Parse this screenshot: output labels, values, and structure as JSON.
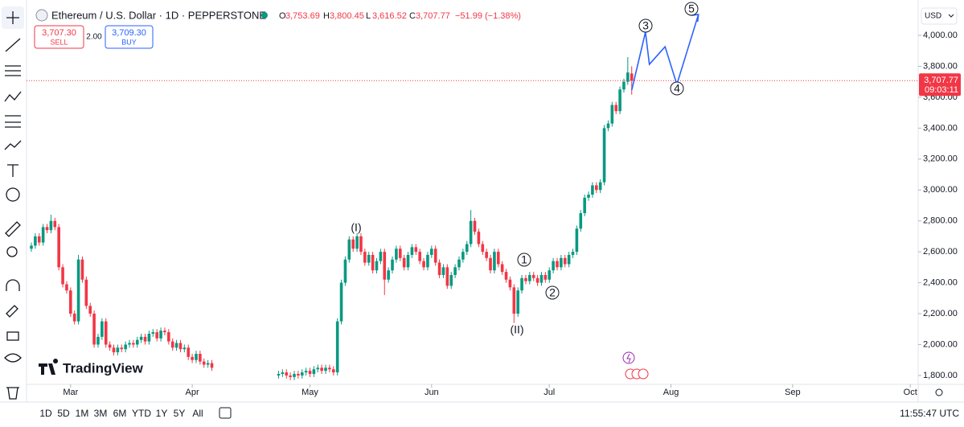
{
  "header": {
    "symbol": "Ethereum / U.S. Dollar · 1D · PEPPERSTONE",
    "ohlc": [
      {
        "label": "O",
        "value": "3,753.69"
      },
      {
        "label": "H",
        "value": "3,800.45"
      },
      {
        "label": "L",
        "value": "3,616.52"
      },
      {
        "label": "C",
        "value": "3,707.77"
      }
    ],
    "change": "−51.99 (−1.38%)",
    "sell": {
      "price": "3,707.30",
      "label": "SELL"
    },
    "spread": "2.00",
    "buy": {
      "price": "3,709.30",
      "label": "BUY"
    }
  },
  "chart_data": {
    "type": "candlestick",
    "x": [
      0,
      1,
      2,
      3,
      4,
      5,
      6,
      7,
      8,
      9,
      10,
      11,
      12,
      13,
      14,
      15,
      16,
      17,
      18,
      19,
      20,
      21,
      22,
      23,
      24,
      25,
      26,
      27,
      28,
      29,
      30,
      31,
      32,
      33,
      34,
      35,
      36,
      37,
      38,
      39,
      40,
      41,
      42,
      43,
      44,
      45,
      46,
      63,
      64,
      65,
      66,
      67,
      68,
      69,
      70,
      71,
      72,
      73,
      74,
      75,
      76,
      77,
      78,
      79,
      80,
      81,
      82,
      83,
      84,
      85,
      86,
      87,
      88,
      89,
      90,
      91,
      92,
      93,
      94,
      95,
      96,
      97,
      98,
      99,
      100,
      101,
      102,
      103,
      104,
      105,
      106,
      107,
      108,
      109,
      110,
      111,
      112,
      113,
      114,
      115,
      116,
      117,
      118,
      119,
      120,
      121,
      122,
      123,
      124,
      125,
      126,
      127,
      128,
      129,
      130,
      131,
      132,
      133,
      134,
      135,
      136,
      137,
      138,
      139,
      140,
      141,
      142,
      143,
      144,
      145,
      146,
      147,
      148,
      149,
      150,
      151,
      152,
      153
    ],
    "open": [
      2620,
      2640,
      2700,
      2660,
      2760,
      2740,
      2800,
      2760,
      2500,
      2390,
      2350,
      2200,
      2150,
      2550,
      2420,
      2250,
      2200,
      2000,
      2050,
      2150,
      2000,
      1980,
      1950,
      1980,
      1970,
      2000,
      2010,
      2000,
      2030,
      2050,
      2020,
      2070,
      2080,
      2040,
      2090,
      2080,
      2020,
      1980,
      2010,
      1970,
      1980,
      1920,
      1900,
      1940,
      1890,
      1870,
      1880,
      1800,
      1810,
      1820,
      1800,
      1790,
      1810,
      1800,
      1820,
      1830,
      1810,
      1840,
      1850,
      1830,
      1850,
      1840,
      1820,
      2150,
      2400,
      2550,
      2680,
      2620,
      2700,
      2600,
      2530,
      2580,
      2480,
      2540,
      2600,
      2420,
      2480,
      2550,
      2620,
      2560,
      2500,
      2580,
      2630,
      2600,
      2540,
      2500,
      2580,
      2620,
      2530,
      2450,
      2500,
      2380,
      2450,
      2500,
      2550,
      2600,
      2650,
      2800,
      2730,
      2650,
      2600,
      2560,
      2480,
      2600,
      2520,
      2470,
      2420,
      2370,
      2200,
      2350,
      2430,
      2410,
      2450,
      2430,
      2400,
      2450,
      2420,
      2480,
      2540,
      2500,
      2560,
      2520,
      2580,
      2600,
      2750,
      2850,
      2950,
      2970,
      3030,
      3000,
      3050,
      3400,
      3430,
      3550,
      3510,
      3650,
      3700,
      3753.69
    ],
    "high": [
      2660,
      2720,
      2720,
      2780,
      2780,
      2840,
      2820,
      2780,
      2520,
      2410,
      2370,
      2220,
      2580,
      2570,
      2440,
      2270,
      2220,
      2070,
      2170,
      2170,
      2020,
      2000,
      2000,
      2000,
      2020,
      2030,
      2030,
      2050,
      2070,
      2070,
      2090,
      2100,
      2100,
      2110,
      2110,
      2100,
      2040,
      2030,
      2030,
      2000,
      2000,
      1940,
      1960,
      1960,
      1910,
      1900,
      1900,
      1830,
      1840,
      1840,
      1820,
      1830,
      1830,
      1840,
      1850,
      1850,
      1860,
      1870,
      1870,
      1870,
      1870,
      1860,
      2170,
      2420,
      2570,
      2700,
      2700,
      2720,
      2720,
      2620,
      2600,
      2600,
      2560,
      2620,
      2620,
      2500,
      2570,
      2640,
      2640,
      2580,
      2600,
      2650,
      2650,
      2620,
      2560,
      2600,
      2640,
      2640,
      2550,
      2520,
      2520,
      2470,
      2520,
      2570,
      2620,
      2670,
      2870,
      2820,
      2750,
      2670,
      2620,
      2580,
      2620,
      2620,
      2540,
      2490,
      2440,
      2390,
      2370,
      2450,
      2450,
      2470,
      2470,
      2450,
      2470,
      2470,
      2500,
      2560,
      2560,
      2580,
      2580,
      2600,
      2620,
      2770,
      2870,
      2970,
      2990,
      3050,
      3050,
      3070,
      3420,
      3450,
      3570,
      3570,
      3670,
      3720,
      3860,
      3800.45
    ],
    "low": [
      2600,
      2620,
      2640,
      2640,
      2720,
      2720,
      2740,
      2480,
      2370,
      2330,
      2180,
      2130,
      2130,
      2400,
      2230,
      2180,
      1980,
      1980,
      2030,
      1980,
      1960,
      1930,
      1930,
      1950,
      1950,
      1980,
      1980,
      1980,
      2010,
      2000,
      2000,
      2050,
      2020,
      2020,
      2060,
      2000,
      1960,
      1960,
      1950,
      1950,
      1900,
      1880,
      1880,
      1870,
      1850,
      1850,
      1830,
      1780,
      1790,
      1780,
      1770,
      1770,
      1780,
      1780,
      1800,
      1790,
      1790,
      1820,
      1810,
      1810,
      1820,
      1800,
      1800,
      2130,
      2380,
      2530,
      2600,
      2600,
      2580,
      2510,
      2510,
      2460,
      2460,
      2520,
      2320,
      2400,
      2460,
      2530,
      2540,
      2480,
      2480,
      2560,
      2580,
      2520,
      2480,
      2480,
      2560,
      2510,
      2430,
      2430,
      2360,
      2360,
      2430,
      2480,
      2530,
      2580,
      2630,
      2710,
      2630,
      2580,
      2540,
      2460,
      2460,
      2500,
      2450,
      2400,
      2350,
      2140,
      2180,
      2330,
      2390,
      2390,
      2410,
      2380,
      2380,
      2400,
      2400,
      2460,
      2480,
      2480,
      2500,
      2500,
      2560,
      2580,
      2730,
      2830,
      2930,
      2950,
      2980,
      2980,
      3030,
      3380,
      3410,
      3490,
      3490,
      3630,
      3680,
      3616.52
    ],
    "close": [
      2640,
      2700,
      2660,
      2760,
      2740,
      2800,
      2760,
      2500,
      2390,
      2350,
      2200,
      2150,
      2550,
      2420,
      2250,
      2200,
      2000,
      2050,
      2150,
      2000,
      1980,
      1950,
      1980,
      1970,
      2000,
      2010,
      2000,
      2030,
      2050,
      2020,
      2070,
      2080,
      2040,
      2090,
      2080,
      2020,
      1980,
      2010,
      1970,
      1980,
      1920,
      1900,
      1940,
      1890,
      1870,
      1880,
      1850,
      1810,
      1820,
      1800,
      1790,
      1810,
      1800,
      1820,
      1830,
      1810,
      1840,
      1850,
      1830,
      1850,
      1840,
      1820,
      2150,
      2400,
      2550,
      2680,
      2620,
      2700,
      2600,
      2530,
      2580,
      2480,
      2540,
      2600,
      2420,
      2480,
      2550,
      2620,
      2560,
      2500,
      2580,
      2630,
      2600,
      2540,
      2500,
      2580,
      2620,
      2530,
      2450,
      2500,
      2380,
      2450,
      2500,
      2550,
      2600,
      2650,
      2800,
      2730,
      2650,
      2600,
      2560,
      2480,
      2600,
      2520,
      2470,
      2420,
      2370,
      2200,
      2350,
      2430,
      2410,
      2450,
      2430,
      2400,
      2450,
      2420,
      2480,
      2540,
      2500,
      2560,
      2520,
      2580,
      2600,
      2750,
      2850,
      2950,
      2970,
      3030,
      3000,
      3050,
      3400,
      3430,
      3550,
      3510,
      3650,
      3700,
      3760,
      3707.77
    ],
    "up_color": "#089981",
    "down_color": "#f23645",
    "xlim": [
      0,
      226
    ],
    "xticks": [
      {
        "value": 10,
        "label": "Mar"
      },
      {
        "value": 41,
        "label": "Apr"
      },
      {
        "value": 71,
        "label": "May"
      },
      {
        "value": 102,
        "label": "Jun"
      },
      {
        "value": 132,
        "label": "Jul"
      },
      {
        "value": 163,
        "label": "Aug"
      },
      {
        "value": 194,
        "label": "Sep"
      },
      {
        "value": 224,
        "label": "Oct"
      }
    ],
    "ylim": [
      1732,
      4229
    ],
    "yticks": [
      {
        "value": 1800,
        "label": "1,800.00"
      },
      {
        "value": 2000,
        "label": "2,000.00"
      },
      {
        "value": 2200,
        "label": "2,200.00"
      },
      {
        "value": 2400,
        "label": "2,400.00"
      },
      {
        "value": 2600,
        "label": "2,600.00"
      },
      {
        "value": 2800,
        "label": "2,800.00"
      },
      {
        "value": 3000,
        "label": "3,000.00"
      },
      {
        "value": 3200,
        "label": "3,200.00"
      },
      {
        "value": 3400,
        "label": "3,400.00"
      },
      {
        "value": 3600,
        "label": "3,600.00"
      },
      {
        "value": 3800,
        "label": "3,800.00"
      },
      {
        "value": 4000,
        "label": "4,000.00"
      }
    ],
    "currency": "USD",
    "last_price_label": "3,707.77",
    "countdown": "09:03:11",
    "wave": {
      "color": "#2962ff",
      "x": [
        153,
        156.5,
        157.5,
        161.5,
        164.5,
        170
      ],
      "y": [
        3646,
        4021,
        3813,
        3927,
        3683,
        4135
      ]
    },
    "annotations": [
      "(I)",
      "(II)",
      "1",
      "2",
      "3",
      "4",
      "5"
    ],
    "watermark": "TradingView"
  },
  "toolbar": {
    "timeframes": [
      "1D",
      "5D",
      "1M",
      "3M",
      "6M",
      "YTD",
      "1Y",
      "5Y",
      "All"
    ],
    "clock": "11:55:47 UTC"
  }
}
